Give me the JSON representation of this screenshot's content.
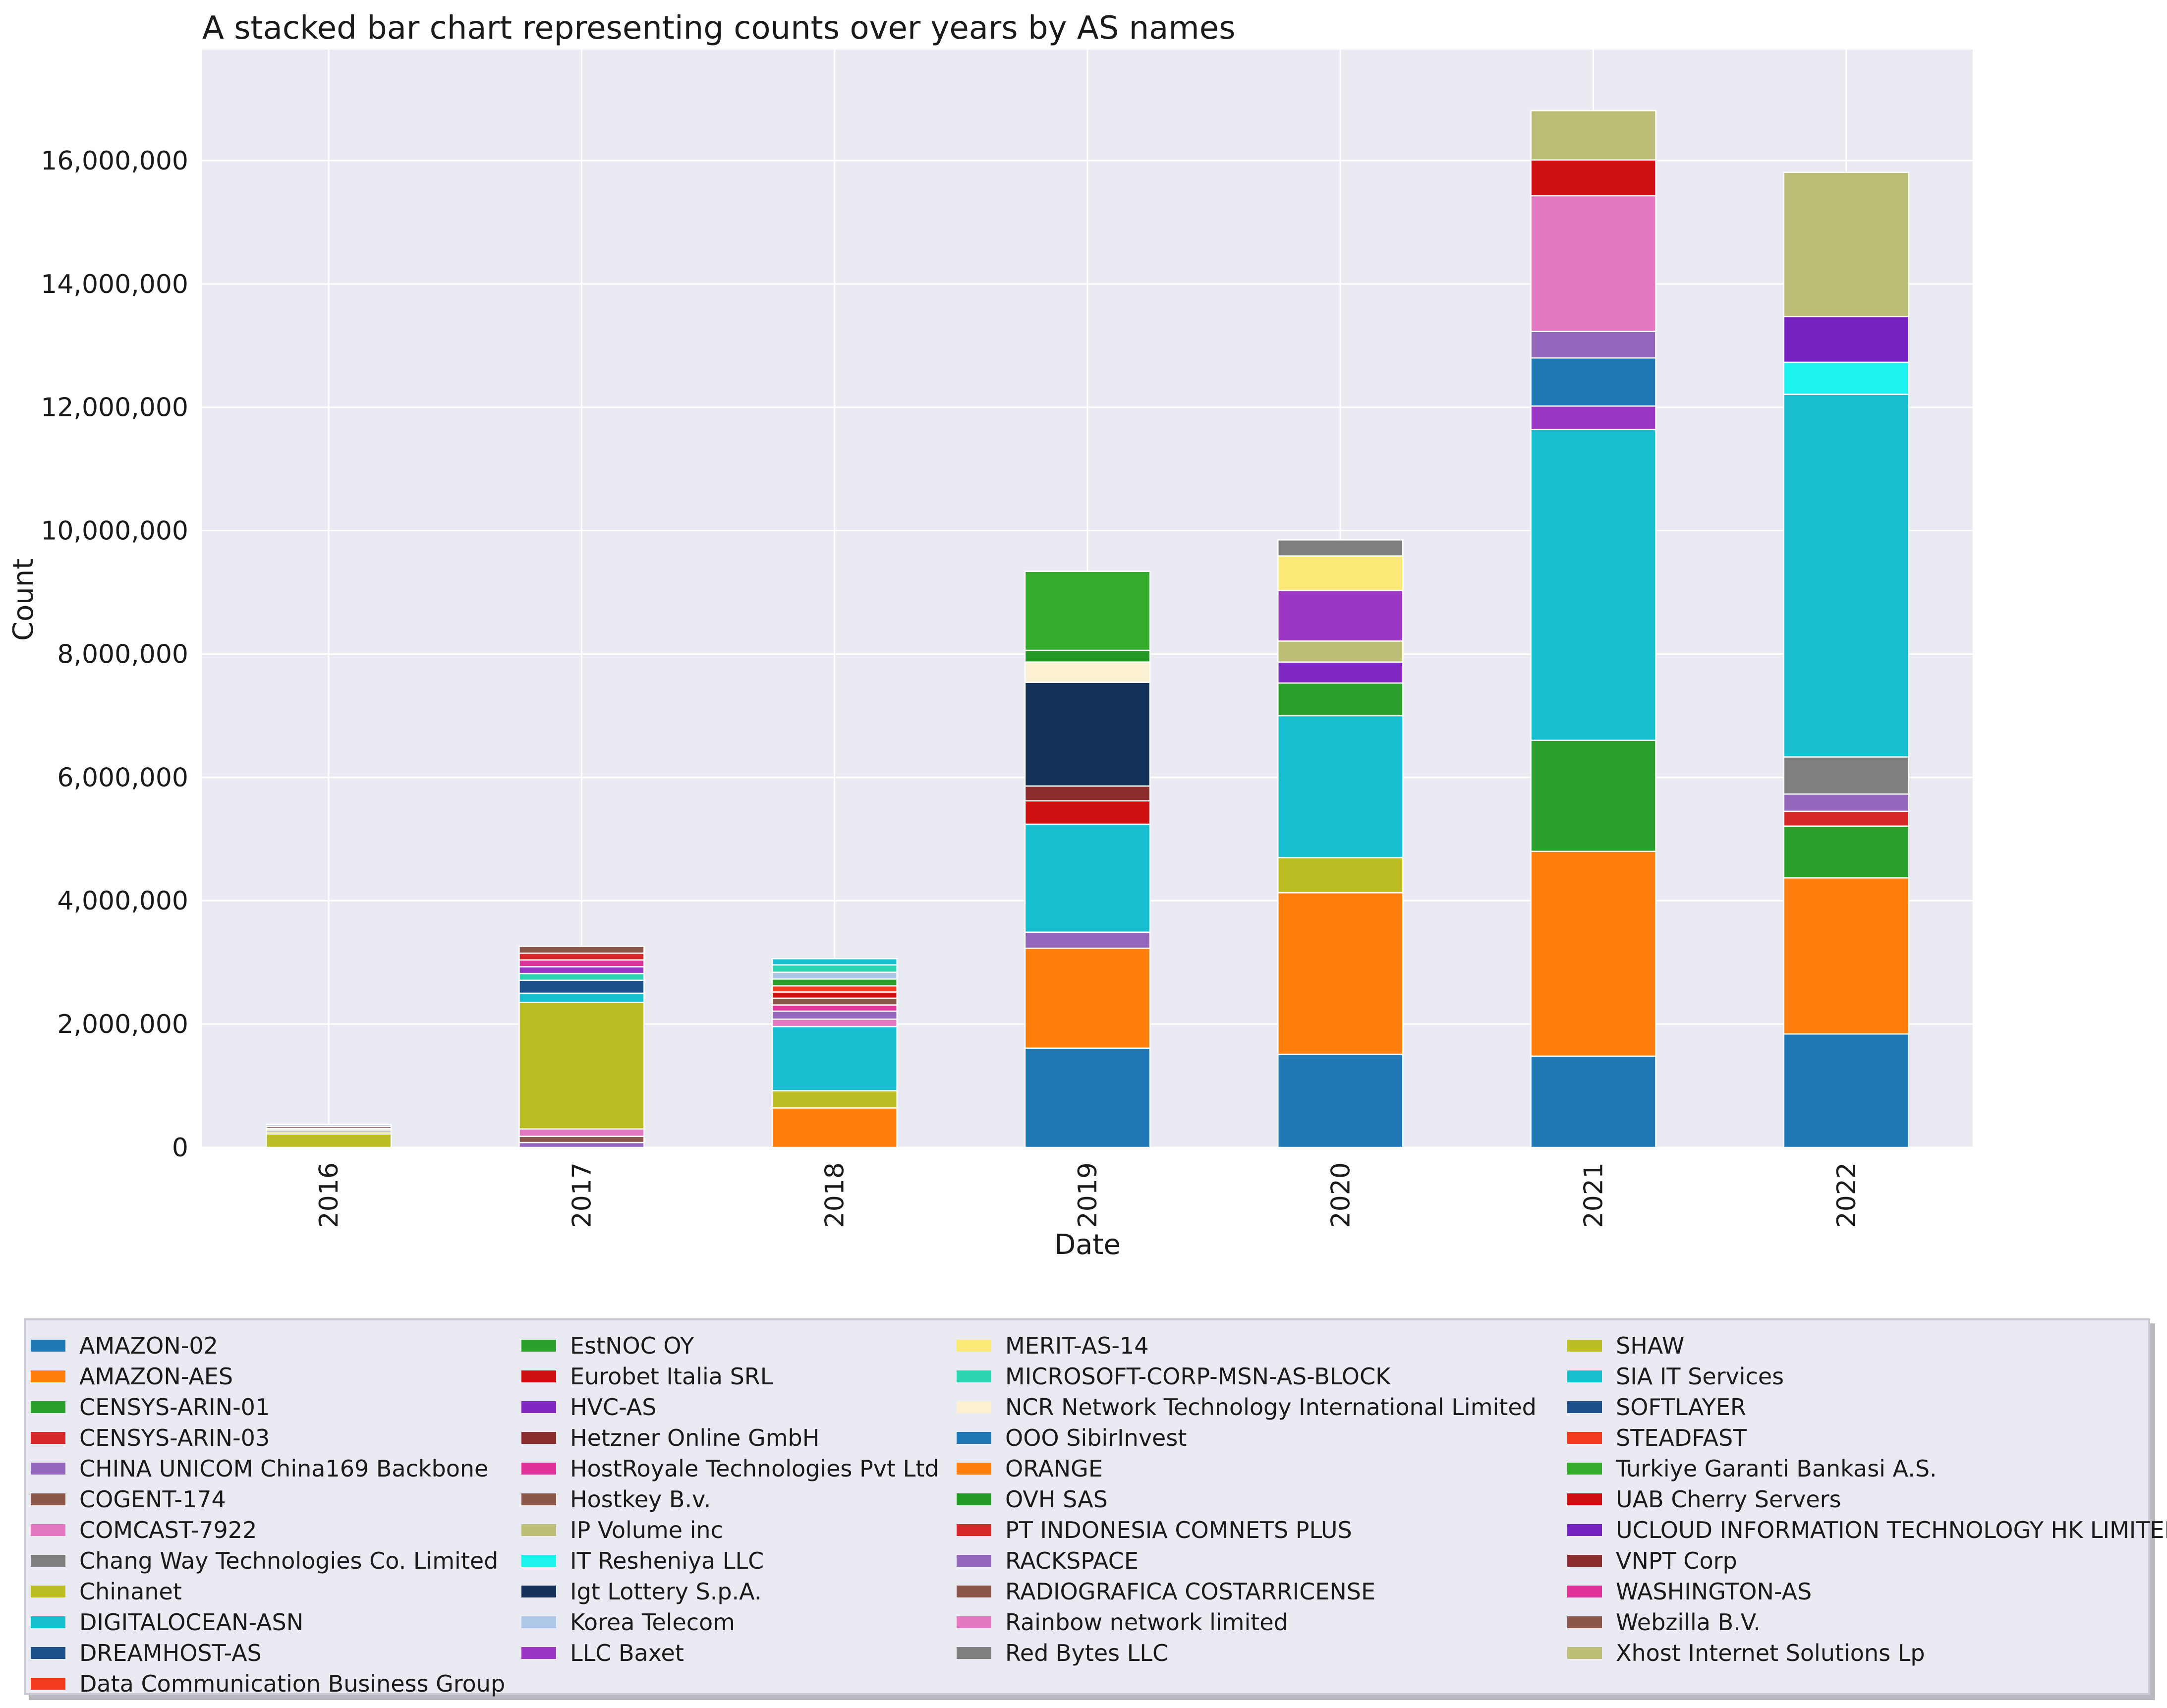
{
  "chart_data": {
    "type": "bar",
    "stacked": true,
    "title": "A stacked bar chart representing counts over years by AS names",
    "xlabel": "Date",
    "ylabel": "Count",
    "ylim": [
      0,
      17800000
    ],
    "yticks": [
      0,
      2000000,
      4000000,
      6000000,
      8000000,
      10000000,
      12000000,
      14000000,
      16000000
    ],
    "ytick_labels": [
      "0",
      "2,000,000",
      "4,000,000",
      "6,000,000",
      "8,000,000",
      "10,000,000",
      "12,000,000",
      "14,000,000",
      "16,000,000"
    ],
    "categories": [
      "2016",
      "2017",
      "2018",
      "2019",
      "2020",
      "2021",
      "2022"
    ],
    "grid": true,
    "legend_location": "bottom",
    "series": [
      {
        "name": "AMAZON-02",
        "color": "#1f77b4",
        "values": [
          0,
          0,
          0,
          1610000,
          1510000,
          1480000,
          1840000
        ]
      },
      {
        "name": "AMAZON-AES",
        "color": "#ff7f0e",
        "values": [
          0,
          0,
          0,
          1620000,
          2620000,
          3320000,
          2530000
        ]
      },
      {
        "name": "CENSYS-ARIN-01",
        "color": "#2ca02c",
        "values": [
          0,
          0,
          0,
          0,
          0,
          1800000,
          840000
        ]
      },
      {
        "name": "CENSYS-ARIN-03",
        "color": "#d62728",
        "values": [
          0,
          0,
          0,
          0,
          0,
          0,
          240000
        ]
      },
      {
        "name": "CHINA UNICOM China169 Backbone",
        "color": "#9467bd",
        "values": [
          0,
          80000,
          0,
          260000,
          0,
          0,
          280000
        ]
      },
      {
        "name": "COGENT-174",
        "color": "#8c564b",
        "values": [
          0,
          100000,
          0,
          0,
          0,
          0,
          0
        ]
      },
      {
        "name": "COMCAST-7922",
        "color": "#e377c2",
        "values": [
          0,
          120000,
          0,
          0,
          0,
          0,
          0
        ]
      },
      {
        "name": "Chang Way Technologies Co. Limited",
        "color": "#7f7f7f",
        "values": [
          0,
          0,
          0,
          0,
          0,
          0,
          600000
        ]
      },
      {
        "name": "Chinanet",
        "color": "#bcbd22",
        "values": [
          0,
          2050000,
          0,
          0,
          570000,
          0,
          0
        ]
      },
      {
        "name": "DIGITALOCEAN-ASN",
        "color": "#17becf",
        "values": [
          0,
          150000,
          0,
          1750000,
          2300000,
          5040000,
          5880000
        ]
      },
      {
        "name": "DREAMHOST-AS",
        "color": "#1b4f8a",
        "values": [
          0,
          210000,
          0,
          0,
          0,
          0,
          0
        ]
      },
      {
        "name": "Data Communication Business Group",
        "color": "#f43a1c",
        "values": [
          0,
          0,
          0,
          0,
          0,
          0,
          0
        ]
      },
      {
        "name": "EstNOC OY",
        "color": "#2ca02c",
        "values": [
          0,
          0,
          0,
          0,
          530000,
          0,
          0
        ]
      },
      {
        "name": "Eurobet Italia SRL",
        "color": "#cf1010",
        "values": [
          0,
          0,
          0,
          380000,
          0,
          0,
          0
        ]
      },
      {
        "name": "HVC-AS",
        "color": "#7f28c4",
        "values": [
          0,
          0,
          0,
          0,
          340000,
          0,
          0
        ]
      },
      {
        "name": "Hetzner Online GmbH",
        "color": "#8c2d2d",
        "values": [
          0,
          0,
          0,
          240000,
          0,
          0,
          0
        ]
      },
      {
        "name": "HostRoyale Technologies Pvt Ltd",
        "color": "#e0339a",
        "values": [
          0,
          0,
          0,
          0,
          0,
          0,
          0
        ]
      },
      {
        "name": "Hostkey B.v.",
        "color": "#8c564b",
        "values": [
          0,
          0,
          0,
          0,
          0,
          0,
          0
        ]
      },
      {
        "name": "IP Volume inc",
        "color": "#bcbd77",
        "values": [
          0,
          0,
          0,
          0,
          340000,
          0,
          0
        ]
      },
      {
        "name": "IT Resheniya LLC",
        "color": "#1ef2ee",
        "values": [
          0,
          0,
          0,
          0,
          0,
          0,
          520000
        ]
      },
      {
        "name": "Igt Lottery S.p.A.",
        "color": "#14325a",
        "values": [
          0,
          0,
          0,
          1680000,
          0,
          0,
          0
        ]
      },
      {
        "name": "Korea Telecom",
        "color": "#aec7e8",
        "values": [
          0,
          0,
          0,
          0,
          0,
          0,
          0
        ]
      },
      {
        "name": "LLC Baxet",
        "color": "#9b36c2",
        "values": [
          0,
          0,
          0,
          0,
          820000,
          380000,
          0
        ]
      },
      {
        "name": "MERIT-AS-14",
        "color": "#fbe877",
        "values": [
          0,
          0,
          0,
          0,
          560000,
          0,
          0
        ]
      },
      {
        "name": "MICROSOFT-CORP-MSN-AS-BLOCK",
        "color": "#2dd4b4",
        "values": [
          0,
          0,
          0,
          0,
          0,
          0,
          0
        ]
      },
      {
        "name": "NCR Network Technology International Limited",
        "color": "#fcf0d2",
        "values": [
          0,
          0,
          0,
          330000,
          0,
          0,
          0
        ]
      },
      {
        "name": "OOO SibirInvest",
        "color": "#1f77b4",
        "values": [
          0,
          0,
          0,
          0,
          0,
          780000,
          0
        ]
      },
      {
        "name": "ORANGE",
        "color": "#ff7f0e",
        "values": [
          0,
          0,
          640000,
          0,
          0,
          0,
          0
        ]
      },
      {
        "name": "OVH SAS",
        "color": "#259925",
        "values": [
          0,
          0,
          0,
          190000,
          0,
          0,
          0
        ]
      },
      {
        "name": "PT INDONESIA COMNETS PLUS",
        "color": "#d62728",
        "values": [
          0,
          0,
          0,
          0,
          0,
          0,
          0
        ]
      },
      {
        "name": "RACKSPACE",
        "color": "#9467bd",
        "values": [
          0,
          0,
          0,
          0,
          0,
          430000,
          0
        ]
      },
      {
        "name": "RADIOGRAFICA COSTARRICENSE",
        "color": "#8c564b",
        "values": [
          0,
          0,
          0,
          0,
          0,
          0,
          0
        ]
      },
      {
        "name": "Rainbow network limited",
        "color": "#e377c2",
        "values": [
          0,
          0,
          0,
          0,
          0,
          2200000,
          0
        ]
      },
      {
        "name": "Red Bytes LLC",
        "color": "#7f7f7f",
        "values": [
          0,
          0,
          0,
          0,
          260000,
          0,
          0
        ]
      },
      {
        "name": "SHAW",
        "color": "#bcbd22",
        "values": [
          220000,
          0,
          280000,
          0,
          0,
          0,
          0
        ]
      },
      {
        "name": "SIA IT Services",
        "color": "#17becf",
        "values": [
          0,
          0,
          1040000,
          0,
          0,
          0,
          0
        ]
      },
      {
        "name": "SOFTLAYER",
        "color": "#1b4f8a",
        "values": [
          0,
          0,
          0,
          0,
          0,
          0,
          0
        ]
      },
      {
        "name": "STEADFAST",
        "color": "#f43a1c",
        "values": [
          0,
          0,
          0,
          0,
          0,
          0,
          0
        ]
      },
      {
        "name": "Turkiye Garanti Bankasi A.S.",
        "color": "#34ab2d",
        "values": [
          0,
          0,
          0,
          1280000,
          0,
          0,
          0
        ]
      },
      {
        "name": "UAB Cherry Servers",
        "color": "#cf1010",
        "values": [
          0,
          0,
          0,
          0,
          0,
          580000,
          0
        ]
      },
      {
        "name": "UCLOUD INFORMATION TECHNOLOGY HK LIMITED",
        "color": "#7522c1",
        "values": [
          0,
          0,
          0,
          0,
          0,
          0,
          740000
        ]
      },
      {
        "name": "VNPT Corp",
        "color": "#8c2d2d",
        "values": [
          0,
          0,
          0,
          0,
          0,
          0,
          0
        ]
      },
      {
        "name": "WASHINGTON-AS",
        "color": "#e0339a",
        "values": [
          0,
          0,
          0,
          0,
          0,
          0,
          0
        ]
      },
      {
        "name": "Webzilla B.V.",
        "color": "#8c564b",
        "values": [
          0,
          0,
          0,
          0,
          0,
          0,
          0
        ]
      },
      {
        "name": "Xhost Internet Solutions Lp",
        "color": "#bcbd77",
        "values": [
          0,
          0,
          0,
          0,
          0,
          800000,
          2340000
        ]
      }
    ],
    "small_segments": [
      {
        "category": "2016",
        "values": [
          30000,
          30000,
          30000,
          30000,
          30000
        ],
        "colors": [
          "#bcbd22",
          "#7f7f7f",
          "#fcf0d2",
          "#8c564b",
          "#aec7e8"
        ]
      },
      {
        "category": "2017",
        "values": [
          110000,
          110000,
          110000,
          110000,
          110000
        ],
        "colors": [
          "#2dd4b4",
          "#9b36c2",
          "#e0339a",
          "#d62728",
          "#8c564b"
        ]
      },
      {
        "category": "2018",
        "values": [
          120000,
          130000,
          100000,
          110000,
          100000,
          100000,
          110000,
          110000,
          120000,
          100000
        ],
        "colors": [
          "#e377c2",
          "#9467bd",
          "#e0339a",
          "#8c564b",
          "#cf1010",
          "#f43a1c",
          "#2ca02c",
          "#aec7e8",
          "#2dd4b4",
          "#17becf"
        ]
      }
    ]
  }
}
